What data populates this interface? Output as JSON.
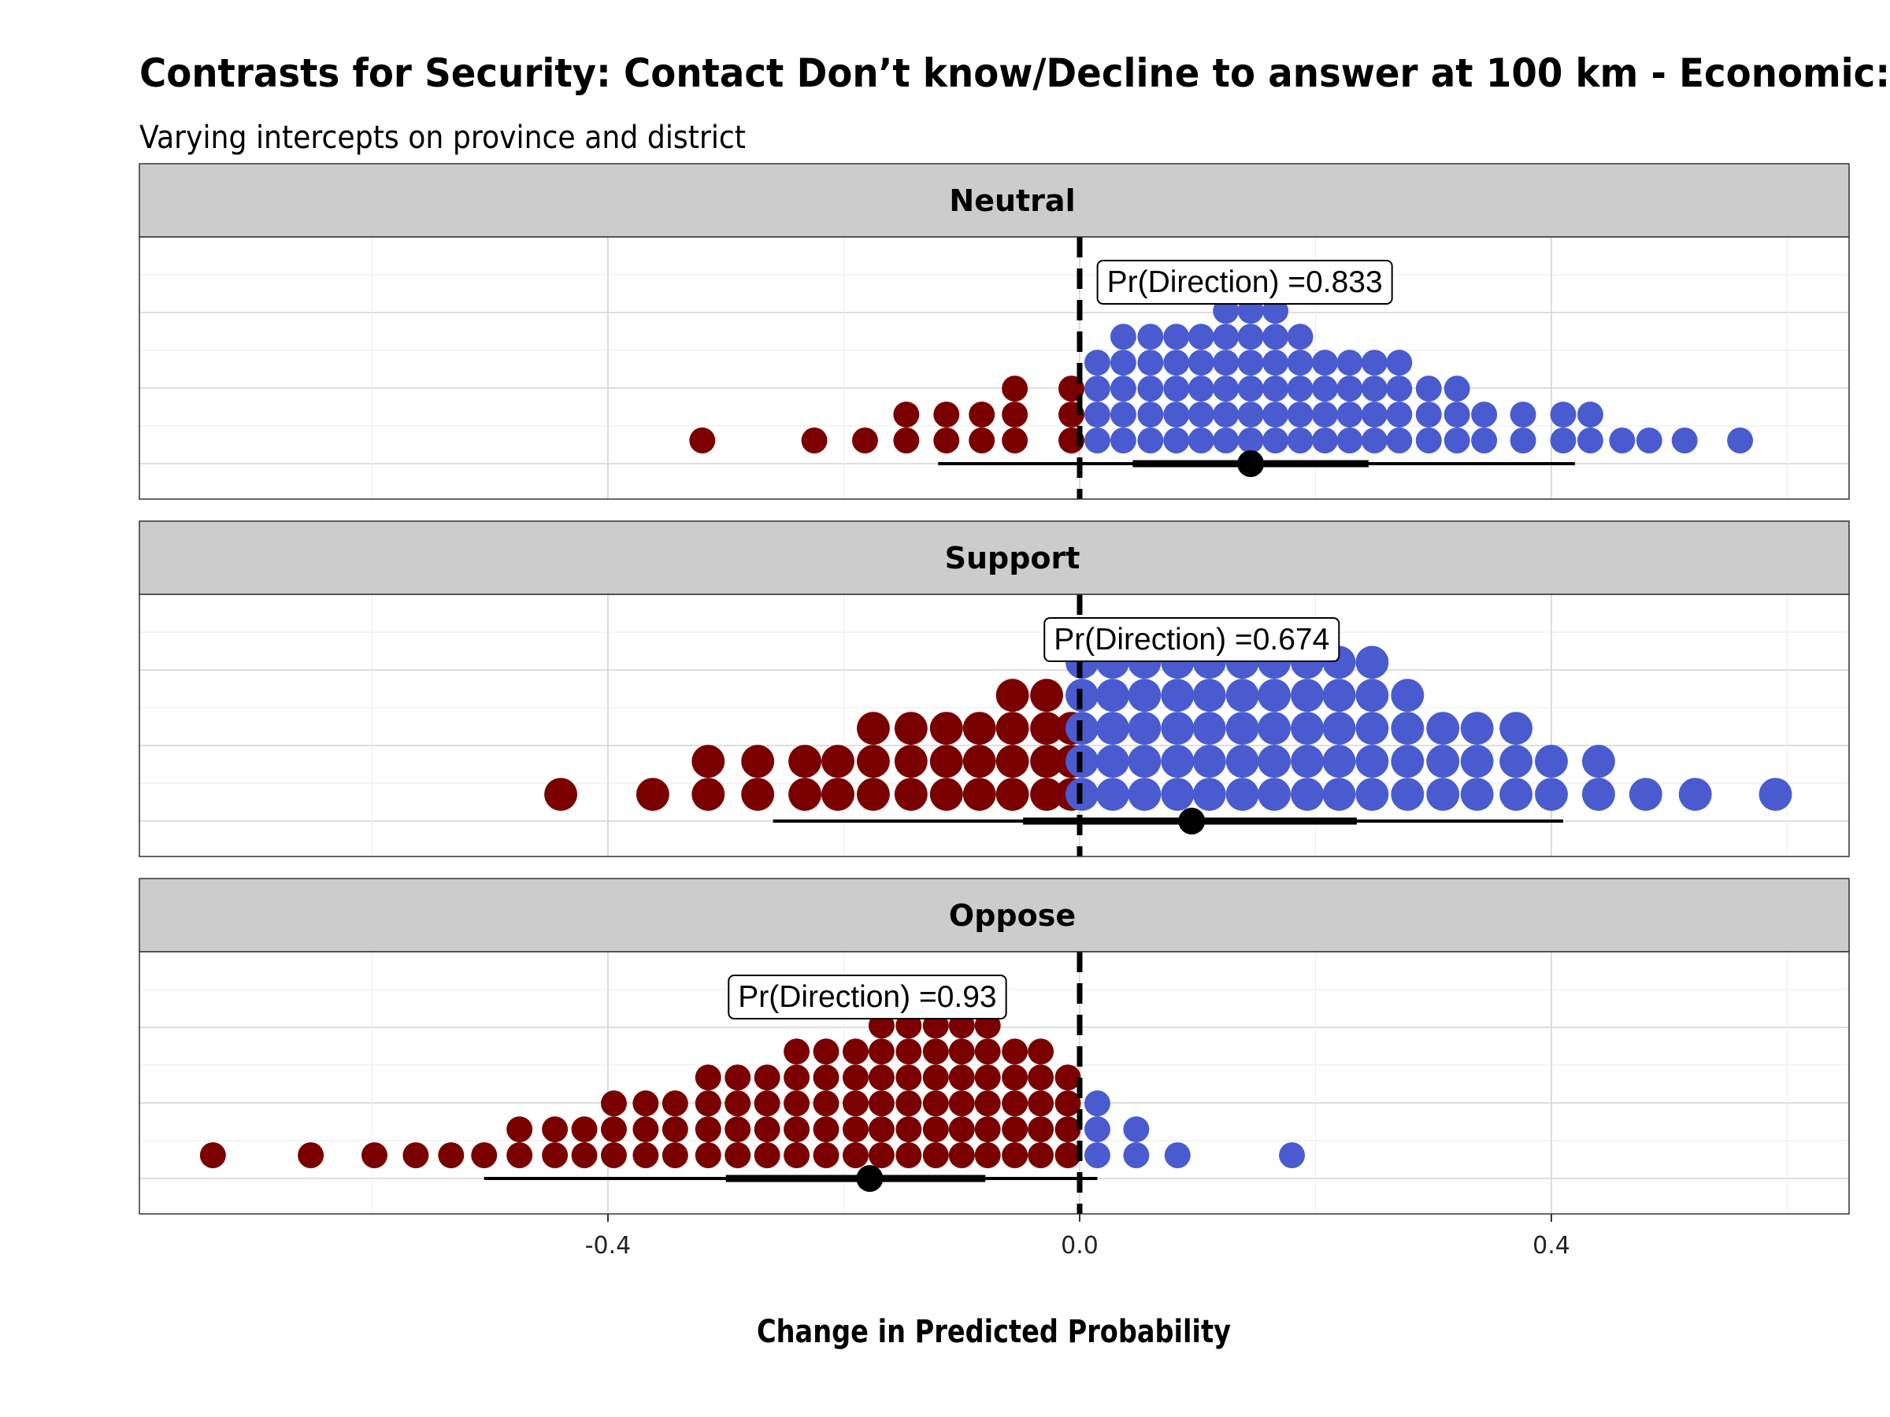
{
  "chart_data": {
    "type": "dotplot",
    "title": "Contrasts for Security: Contact Don’t know/Decline to answer at 100 km - Economic:",
    "subtitle": "Varying intercepts on province and district",
    "xlabel": "Change in Predicted Probability",
    "xlim": [
      -0.8,
      0.65
    ],
    "x_ticks": [
      {
        "value": -0.4,
        "label": "-0.4"
      },
      {
        "value": 0.0,
        "label": "0.0"
      },
      {
        "value": 0.4,
        "label": "0.4"
      }
    ],
    "reference_line_x": 0,
    "colors": {
      "negative": "#7a0000",
      "positive": "#4a5bd0",
      "interval": "#000000",
      "strip": "#cccccc",
      "grid": "#d9d9d9"
    },
    "panels": [
      {
        "label": "Neutral",
        "pr_direction_label": "Pr(Direction) =0.833",
        "label_x": 0.14,
        "median": 0.145,
        "interval_inner": [
          0.045,
          0.245
        ],
        "interval_outer": [
          -0.12,
          0.42
        ],
        "dot_size": 0.022,
        "columns": [
          {
            "x": -0.32,
            "n": 1
          },
          {
            "x": -0.225,
            "n": 1
          },
          {
            "x": -0.182,
            "n": 1
          },
          {
            "x": -0.147,
            "n": 2
          },
          {
            "x": -0.113,
            "n": 2
          },
          {
            "x": -0.083,
            "n": 2
          },
          {
            "x": -0.055,
            "n": 3
          },
          {
            "x": -0.007,
            "n": 3
          },
          {
            "x": 0.015,
            "n": 4
          },
          {
            "x": 0.037,
            "n": 5
          },
          {
            "x": 0.06,
            "n": 5
          },
          {
            "x": 0.082,
            "n": 5
          },
          {
            "x": 0.103,
            "n": 5
          },
          {
            "x": 0.124,
            "n": 6
          },
          {
            "x": 0.145,
            "n": 6
          },
          {
            "x": 0.166,
            "n": 6
          },
          {
            "x": 0.187,
            "n": 5
          },
          {
            "x": 0.208,
            "n": 4
          },
          {
            "x": 0.229,
            "n": 4
          },
          {
            "x": 0.25,
            "n": 4
          },
          {
            "x": 0.271,
            "n": 4
          },
          {
            "x": 0.296,
            "n": 3
          },
          {
            "x": 0.32,
            "n": 3
          },
          {
            "x": 0.343,
            "n": 2
          },
          {
            "x": 0.376,
            "n": 2
          },
          {
            "x": 0.41,
            "n": 2
          },
          {
            "x": 0.433,
            "n": 2
          },
          {
            "x": 0.46,
            "n": 1
          },
          {
            "x": 0.483,
            "n": 1
          },
          {
            "x": 0.513,
            "n": 1
          },
          {
            "x": 0.56,
            "n": 1
          }
        ]
      },
      {
        "label": "Support",
        "pr_direction_label": "Pr(Direction) =0.674",
        "label_x": 0.095,
        "median": 0.095,
        "interval_inner": [
          -0.048,
          0.235
        ],
        "interval_outer": [
          -0.26,
          0.41
        ],
        "dot_size": 0.028,
        "columns": [
          {
            "x": -0.44,
            "n": 1
          },
          {
            "x": -0.362,
            "n": 1
          },
          {
            "x": -0.315,
            "n": 2
          },
          {
            "x": -0.273,
            "n": 2
          },
          {
            "x": -0.233,
            "n": 2
          },
          {
            "x": -0.205,
            "n": 2
          },
          {
            "x": -0.175,
            "n": 3
          },
          {
            "x": -0.143,
            "n": 3
          },
          {
            "x": -0.113,
            "n": 3
          },
          {
            "x": -0.085,
            "n": 3
          },
          {
            "x": -0.057,
            "n": 4
          },
          {
            "x": -0.028,
            "n": 4
          },
          {
            "x": -0.007,
            "n": 3
          },
          {
            "x": 0.002,
            "n": 5
          },
          {
            "x": 0.028,
            "n": 5
          },
          {
            "x": 0.055,
            "n": 5
          },
          {
            "x": 0.083,
            "n": 5
          },
          {
            "x": 0.11,
            "n": 5
          },
          {
            "x": 0.138,
            "n": 5
          },
          {
            "x": 0.165,
            "n": 5
          },
          {
            "x": 0.193,
            "n": 5
          },
          {
            "x": 0.22,
            "n": 5
          },
          {
            "x": 0.248,
            "n": 5
          },
          {
            "x": 0.278,
            "n": 4
          },
          {
            "x": 0.308,
            "n": 3
          },
          {
            "x": 0.337,
            "n": 3
          },
          {
            "x": 0.37,
            "n": 3
          },
          {
            "x": 0.4,
            "n": 2
          },
          {
            "x": 0.44,
            "n": 2
          },
          {
            "x": 0.48,
            "n": 1
          },
          {
            "x": 0.522,
            "n": 1
          },
          {
            "x": 0.59,
            "n": 1
          }
        ]
      },
      {
        "label": "Oppose",
        "pr_direction_label": "Pr(Direction) =0.93",
        "label_x": -0.18,
        "median": -0.178,
        "interval_inner": [
          -0.3,
          -0.08
        ],
        "interval_outer": [
          -0.505,
          0.015
        ],
        "dot_size": 0.022,
        "columns": [
          {
            "x": -0.735,
            "n": 1
          },
          {
            "x": -0.652,
            "n": 1
          },
          {
            "x": -0.598,
            "n": 1
          },
          {
            "x": -0.563,
            "n": 1
          },
          {
            "x": -0.533,
            "n": 1
          },
          {
            "x": -0.505,
            "n": 1
          },
          {
            "x": -0.475,
            "n": 2
          },
          {
            "x": -0.445,
            "n": 2
          },
          {
            "x": -0.42,
            "n": 2
          },
          {
            "x": -0.395,
            "n": 3
          },
          {
            "x": -0.368,
            "n": 3
          },
          {
            "x": -0.343,
            "n": 3
          },
          {
            "x": -0.315,
            "n": 4
          },
          {
            "x": -0.29,
            "n": 4
          },
          {
            "x": -0.265,
            "n": 4
          },
          {
            "x": -0.24,
            "n": 5
          },
          {
            "x": -0.215,
            "n": 5
          },
          {
            "x": -0.19,
            "n": 5
          },
          {
            "x": -0.168,
            "n": 6
          },
          {
            "x": -0.145,
            "n": 6
          },
          {
            "x": -0.122,
            "n": 6
          },
          {
            "x": -0.1,
            "n": 6
          },
          {
            "x": -0.078,
            "n": 6
          },
          {
            "x": -0.055,
            "n": 5
          },
          {
            "x": -0.033,
            "n": 5
          },
          {
            "x": -0.01,
            "n": 4
          },
          {
            "x": 0.015,
            "n": 3
          },
          {
            "x": 0.048,
            "n": 2
          },
          {
            "x": 0.083,
            "n": 1
          },
          {
            "x": 0.18,
            "n": 1
          }
        ]
      }
    ]
  }
}
